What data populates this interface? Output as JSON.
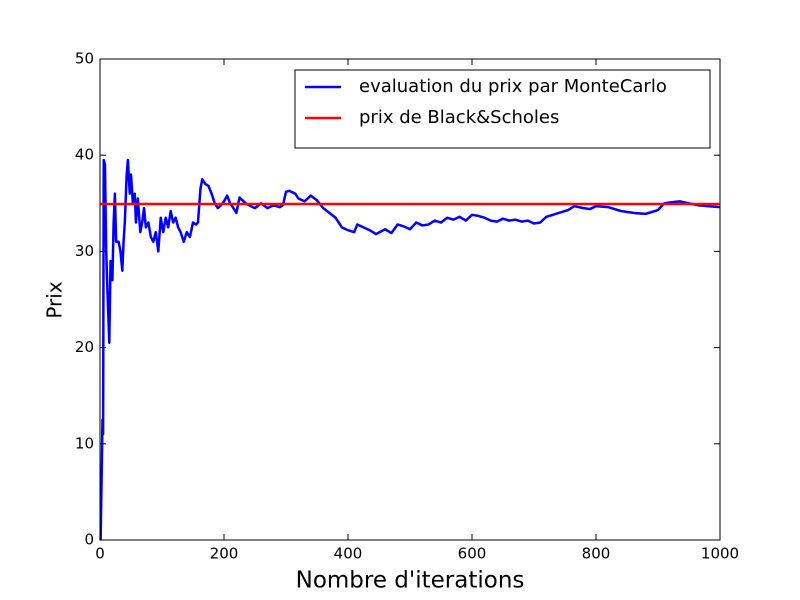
{
  "chart_data": {
    "type": "line",
    "xlabel": "Nombre d'iterations",
    "ylabel": "Prix",
    "xlim": [
      0,
      1000
    ],
    "ylim": [
      0,
      50
    ],
    "xticks": [
      0,
      200,
      400,
      600,
      800,
      1000
    ],
    "yticks": [
      0,
      10,
      20,
      30,
      40,
      50
    ],
    "legend": "upper right",
    "grid": false,
    "series": [
      {
        "name": "evaluation du prix par MonteCarlo",
        "color": "#0000ff",
        "x": [
          1,
          3,
          4,
          5,
          6,
          8,
          10,
          13,
          15,
          17,
          20,
          22,
          24,
          26,
          30,
          33,
          36,
          38,
          40,
          43,
          45,
          48,
          50,
          53,
          56,
          58,
          61,
          65,
          68,
          71,
          74,
          78,
          82,
          86,
          90,
          94,
          98,
          102,
          106,
          110,
          114,
          118,
          122,
          126,
          130,
          135,
          140,
          145,
          150,
          155,
          158,
          162,
          165,
          170,
          175,
          180,
          185,
          190,
          195,
          200,
          205,
          210,
          215,
          220,
          225,
          230,
          235,
          240,
          250,
          260,
          270,
          280,
          290,
          295,
          300,
          305,
          315,
          320,
          330,
          340,
          350,
          360,
          370,
          380,
          390,
          400,
          410,
          415,
          425,
          435,
          445,
          460,
          470,
          480,
          490,
          500,
          510,
          520,
          530,
          540,
          550,
          560,
          570,
          580,
          590,
          600,
          610,
          620,
          630,
          640,
          650,
          660,
          670,
          680,
          690,
          700,
          710,
          720,
          740,
          755,
          765,
          780,
          790,
          800,
          820,
          840,
          860,
          880,
          900,
          910,
          920,
          935,
          950,
          965,
          980,
          1000
        ],
        "values": [
          0,
          8,
          12.5,
          11,
          39.5,
          39,
          30,
          24,
          20.5,
          29,
          27,
          33,
          36,
          31,
          31,
          30,
          28,
          31,
          33,
          38,
          39.5,
          36,
          38,
          35,
          36,
          33,
          35.5,
          32,
          33,
          34.5,
          32.5,
          33,
          31.5,
          31,
          32,
          30,
          33.5,
          32,
          33.5,
          32.5,
          34.2,
          33,
          33.5,
          32.5,
          32,
          31,
          32,
          31.5,
          33,
          32.8,
          33,
          36.5,
          37.5,
          37,
          36.8,
          36,
          35,
          34.5,
          34.8,
          35.2,
          35.8,
          35,
          34.5,
          34,
          35.6,
          35.3,
          35,
          34.8,
          34.5,
          35,
          34.5,
          34.8,
          34.6,
          34.8,
          36.2,
          36.3,
          36,
          35.5,
          35.2,
          35.8,
          35.3,
          34.5,
          34,
          33.5,
          32.5,
          32.2,
          32,
          32.8,
          32.5,
          32.2,
          31.8,
          32.3,
          31.9,
          32.8,
          32.6,
          32.3,
          33,
          32.7,
          32.8,
          33.2,
          33,
          33.5,
          33.3,
          33.6,
          33.2,
          33.8,
          33.7,
          33.5,
          33.2,
          33.1,
          33.4,
          33.2,
          33.3,
          33.1,
          33.2,
          32.9,
          33,
          33.6,
          34,
          34.3,
          34.7,
          34.5,
          34.4,
          34.7,
          34.6,
          34.2,
          34,
          33.9,
          34.3,
          35,
          35.1,
          35.2,
          35,
          34.8,
          34.7,
          34.6
        ]
      },
      {
        "name": "prix de Black&Scholes",
        "color": "#ff0000",
        "x": [
          0,
          1000
        ],
        "values": [
          34.93,
          34.93
        ]
      }
    ]
  }
}
